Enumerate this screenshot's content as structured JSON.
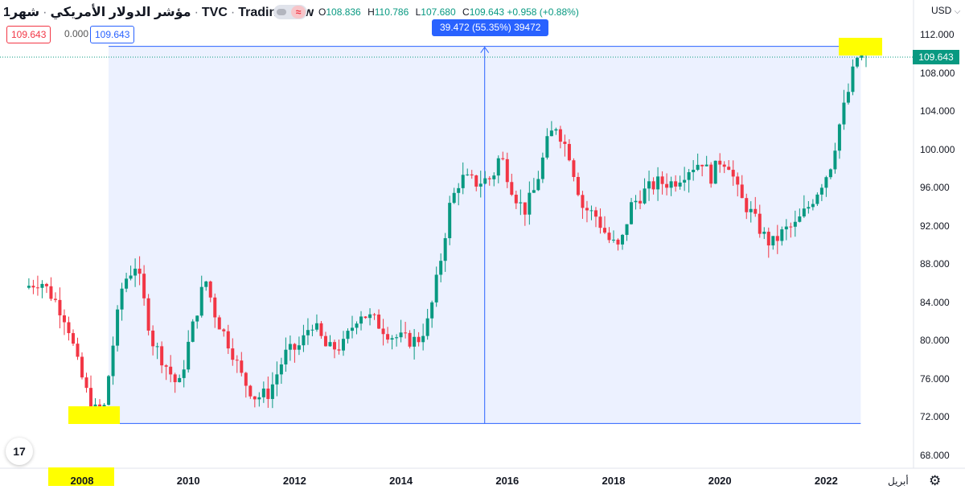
{
  "header": {
    "title_symbol": "مؤشر الدولار الأمريكي",
    "title_interval": "شهر1",
    "title_exchange": "TVC",
    "title_brand": "TradingView",
    "ohlc": {
      "o_label": "O",
      "o": "108.836",
      "h_label": "H",
      "h": "110.786",
      "l_label": "L",
      "l": "107.680",
      "c_label": "C",
      "c": "109.643",
      "change": "+0.958 (+0.88%)"
    }
  },
  "inputs": {
    "value_red": "109.643",
    "value_zero": "0.000",
    "value_blue": "109.643"
  },
  "measure_label": "39.472 (55.35%) 39472",
  "currency_label": "USD",
  "last_price": "109.643",
  "month_label": "أبريل",
  "logo_text": "17",
  "colors": {
    "up": "#089981",
    "down": "#f23645",
    "measure": "#2962ff",
    "highlight": "#ffff00"
  },
  "chart_data": {
    "type": "candlestick",
    "interval": "monthly",
    "x_ticks": [
      "2008",
      "2010",
      "2012",
      "2014",
      "2016",
      "2018",
      "2020",
      "2022"
    ],
    "y_ticks": [
      "68.000",
      "72.000",
      "76.000",
      "80.000",
      "84.000",
      "88.000",
      "92.000",
      "96.000",
      "100.000",
      "104.000",
      "108.000",
      "112.000"
    ],
    "ylim": [
      66.5,
      113.5
    ],
    "x_range": [
      2007.0,
      2022.75
    ],
    "last_close": 109.643,
    "measure": {
      "start_x": 2008.5,
      "end_x": 2022.65,
      "from": 71.3,
      "to": 110.77,
      "change": 39.472,
      "percent": "55.35%"
    },
    "anchors": [
      [
        2007.0,
        85.5
      ],
      [
        2007.3,
        86.3
      ],
      [
        2007.6,
        84.0
      ],
      [
        2007.8,
        82.0
      ],
      [
        2008.0,
        77.5
      ],
      [
        2008.2,
        74.0
      ],
      [
        2008.35,
        72.5
      ],
      [
        2008.5,
        73.0
      ],
      [
        2008.65,
        79.0
      ],
      [
        2008.85,
        86.0
      ],
      [
        2009.1,
        88.0
      ],
      [
        2009.4,
        80.0
      ],
      [
        2009.6,
        78.0
      ],
      [
        2009.9,
        75.0
      ],
      [
        2010.1,
        80.0
      ],
      [
        2010.4,
        86.5
      ],
      [
        2010.6,
        82.5
      ],
      [
        2010.9,
        79.0
      ],
      [
        2011.1,
        76.0
      ],
      [
        2011.35,
        74.0
      ],
      [
        2011.6,
        74.5
      ],
      [
        2011.9,
        78.5
      ],
      [
        2012.2,
        79.5
      ],
      [
        2012.4,
        82.0
      ],
      [
        2012.7,
        79.0
      ],
      [
        2013.0,
        79.5
      ],
      [
        2013.3,
        83.0
      ],
      [
        2013.6,
        82.0
      ],
      [
        2013.9,
        80.5
      ],
      [
        2014.2,
        80.0
      ],
      [
        2014.4,
        80.0
      ],
      [
        2014.6,
        82.0
      ],
      [
        2014.8,
        87.5
      ],
      [
        2015.0,
        94.0
      ],
      [
        2015.2,
        97.0
      ],
      [
        2015.5,
        96.5
      ],
      [
        2015.8,
        97.0
      ],
      [
        2015.95,
        99.5
      ],
      [
        2016.2,
        95.5
      ],
      [
        2016.4,
        93.5
      ],
      [
        2016.6,
        95.8
      ],
      [
        2016.85,
        101.0
      ],
      [
        2017.0,
        102.5
      ],
      [
        2017.25,
        99.5
      ],
      [
        2017.5,
        94.0
      ],
      [
        2017.75,
        93.0
      ],
      [
        2018.0,
        90.5
      ],
      [
        2018.2,
        89.5
      ],
      [
        2018.4,
        94.0
      ],
      [
        2018.65,
        95.5
      ],
      [
        2018.9,
        96.5
      ],
      [
        2019.2,
        96.5
      ],
      [
        2019.5,
        98.0
      ],
      [
        2019.75,
        98.8
      ],
      [
        2019.9,
        97.0
      ],
      [
        2020.1,
        99.0
      ],
      [
        2020.25,
        98.5
      ],
      [
        2020.45,
        95.0
      ],
      [
        2020.65,
        93.5
      ],
      [
        2020.9,
        91.0
      ],
      [
        2021.05,
        90.0
      ],
      [
        2021.3,
        91.5
      ],
      [
        2021.5,
        92.0
      ],
      [
        2021.75,
        94.0
      ],
      [
        2021.95,
        96.0
      ],
      [
        2022.15,
        98.0
      ],
      [
        2022.35,
        103.0
      ],
      [
        2022.5,
        106.0
      ],
      [
        2022.65,
        109.6
      ]
    ]
  }
}
